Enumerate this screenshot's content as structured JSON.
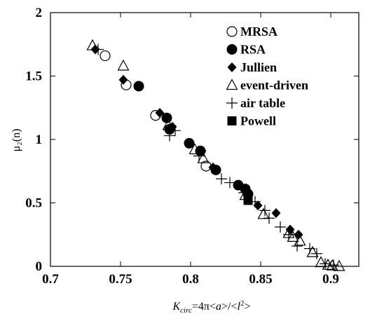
{
  "chart_data": {
    "type": "scatter",
    "xlabel": "K_circ = 4π<a>/<l²>",
    "ylabel": "μ₂(n)",
    "xlim": [
      0.7,
      0.92
    ],
    "ylim": [
      0,
      2
    ],
    "x_ticks": [
      "0.7",
      "0.75",
      "0.8",
      "0.85",
      "0.9"
    ],
    "y_ticks": [
      "0",
      "0.5",
      "1",
      "1.5",
      "2"
    ],
    "legend_position": "top-right",
    "series": [
      {
        "name": "MRSA",
        "marker": "open-circle",
        "points": [
          [
            0.739,
            1.66
          ],
          [
            0.754,
            1.43
          ],
          [
            0.775,
            1.19
          ],
          [
            0.811,
            0.79
          ]
        ]
      },
      {
        "name": "RSA",
        "marker": "filled-circle",
        "points": [
          [
            0.763,
            1.42
          ],
          [
            0.783,
            1.17
          ],
          [
            0.785,
            1.08
          ],
          [
            0.799,
            0.97
          ],
          [
            0.807,
            0.91
          ],
          [
            0.818,
            0.76
          ],
          [
            0.834,
            0.64
          ],
          [
            0.839,
            0.61
          ],
          [
            0.841,
            0.57
          ]
        ]
      },
      {
        "name": "Jullien",
        "marker": "filled-diamond",
        "points": [
          [
            0.732,
            1.71
          ],
          [
            0.752,
            1.47
          ],
          [
            0.778,
            1.21
          ],
          [
            0.787,
            1.1
          ],
          [
            0.808,
            0.91
          ],
          [
            0.816,
            0.78
          ],
          [
            0.848,
            0.48
          ],
          [
            0.861,
            0.42
          ],
          [
            0.871,
            0.29
          ],
          [
            0.877,
            0.25
          ]
        ]
      },
      {
        "name": "event-driven",
        "marker": "open-triangle",
        "points": [
          [
            0.73,
            1.74
          ],
          [
            0.752,
            1.58
          ],
          [
            0.784,
            1.11
          ],
          [
            0.803,
            0.92
          ],
          [
            0.809,
            0.85
          ],
          [
            0.839,
            0.56
          ],
          [
            0.852,
            0.41
          ],
          [
            0.87,
            0.26
          ],
          [
            0.873,
            0.23
          ],
          [
            0.878,
            0.2
          ],
          [
            0.887,
            0.11
          ],
          [
            0.893,
            0.03
          ],
          [
            0.898,
            0.01
          ],
          [
            0.901,
            0.005
          ],
          [
            0.906,
            0.0
          ]
        ]
      },
      {
        "name": "air table",
        "marker": "plus",
        "points": [
          [
            0.734,
            1.71
          ],
          [
            0.785,
            1.03
          ],
          [
            0.789,
            1.07
          ],
          [
            0.806,
            0.87
          ],
          [
            0.822,
            0.69
          ],
          [
            0.828,
            0.66
          ],
          [
            0.838,
            0.58
          ],
          [
            0.846,
            0.51
          ],
          [
            0.853,
            0.44
          ],
          [
            0.856,
            0.38
          ],
          [
            0.864,
            0.31
          ],
          [
            0.87,
            0.25
          ],
          [
            0.876,
            0.16
          ],
          [
            0.885,
            0.14
          ],
          [
            0.89,
            0.1
          ],
          [
            0.896,
            0.02
          ],
          [
            0.902,
            0.01
          ]
        ]
      },
      {
        "name": "Powell",
        "marker": "filled-square",
        "points": [
          [
            0.841,
            0.52
          ]
        ]
      }
    ]
  }
}
